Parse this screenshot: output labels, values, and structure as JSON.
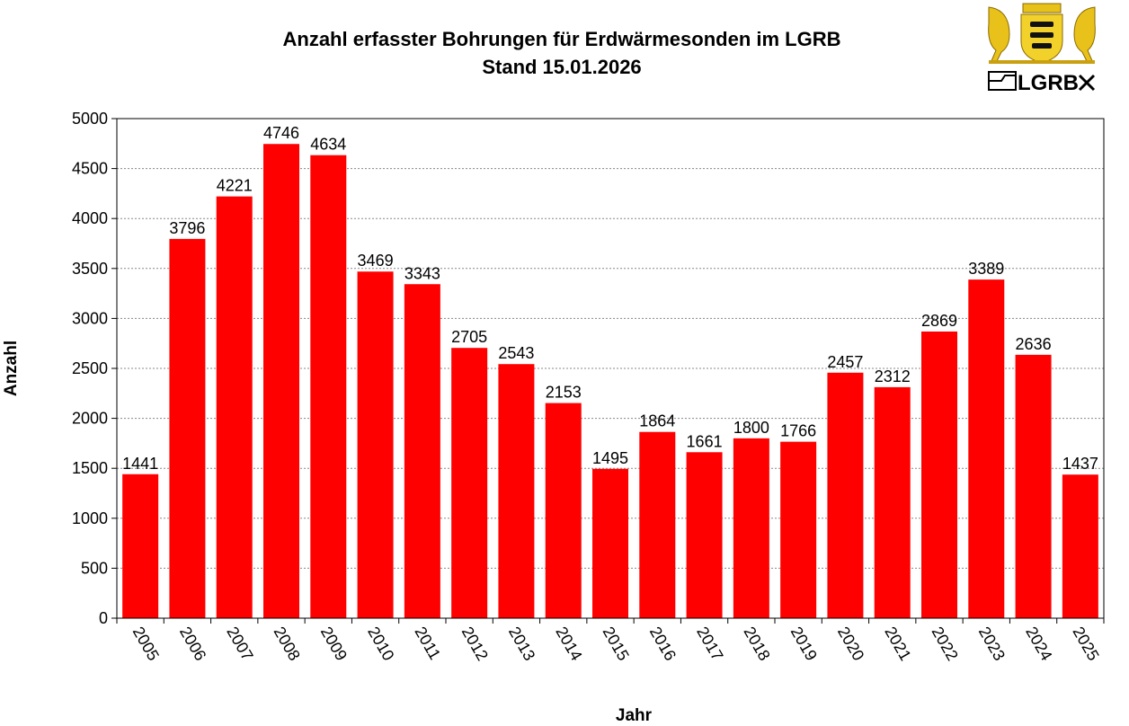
{
  "chart_data": {
    "type": "bar",
    "title": "Anzahl erfasster Bohrungen für Erdwärmesonden im LGRB",
    "subtitle": "Stand 15.01.2026",
    "xlabel": "Jahr",
    "ylabel": "Anzahl",
    "ylim": [
      0,
      5000
    ],
    "yticks": [
      0,
      500,
      1000,
      1500,
      2000,
      2500,
      3000,
      3500,
      4000,
      4500,
      5000
    ],
    "grid": true,
    "bar_color": "#ff0000",
    "categories": [
      "2005",
      "2006",
      "2007",
      "2008",
      "2009",
      "2010",
      "2011",
      "2012",
      "2013",
      "2014",
      "2015",
      "2016",
      "2017",
      "2018",
      "2019",
      "2020",
      "2021",
      "2022",
      "2023",
      "2024",
      "2025"
    ],
    "values": [
      1441,
      3796,
      4221,
      4746,
      4634,
      3469,
      3343,
      2705,
      2543,
      2153,
      1495,
      1864,
      1661,
      1800,
      1766,
      2457,
      2312,
      2869,
      3389,
      2636,
      1437
    ]
  },
  "logo": {
    "text": "LGRB"
  }
}
